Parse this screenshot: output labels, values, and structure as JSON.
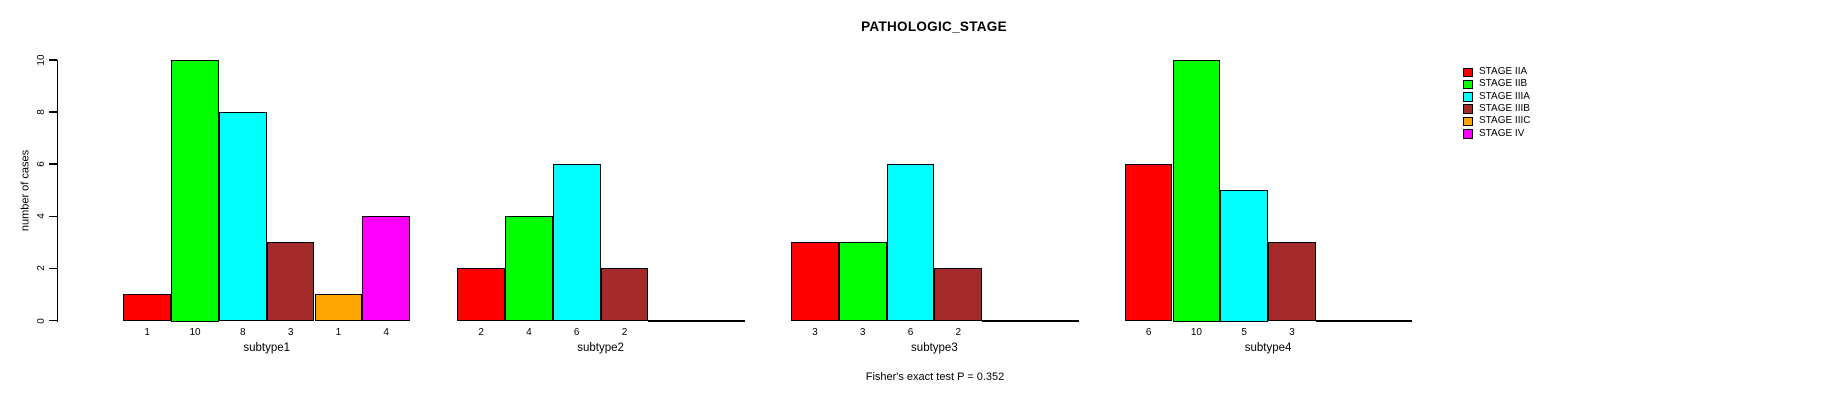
{
  "chart_data": {
    "type": "bar",
    "title": "PATHOLOGIC_STAGE",
    "ylabel": "number of cases",
    "annotation": "Fisher's exact test P = 0.352",
    "ylim": [
      0,
      10
    ],
    "yticks": [
      0,
      2,
      4,
      6,
      8,
      10
    ],
    "grid": false,
    "legend_position": "top-right",
    "categories": [
      "subtype1",
      "subtype2",
      "subtype3",
      "subtype4"
    ],
    "series": [
      {
        "name": "STAGE IIA",
        "color": "#FF0000",
        "values": [
          1,
          2,
          3,
          6
        ]
      },
      {
        "name": "STAGE IIB",
        "color": "#00FF00",
        "values": [
          10,
          4,
          3,
          10
        ]
      },
      {
        "name": "STAGE IIIA",
        "color": "#00FFFF",
        "values": [
          8,
          6,
          6,
          5
        ]
      },
      {
        "name": "STAGE IIIB",
        "color": "#A52A2A",
        "values": [
          3,
          2,
          2,
          3
        ]
      },
      {
        "name": "STAGE IIIC",
        "color": "#FFA500",
        "values": [
          1,
          0,
          0,
          0
        ]
      },
      {
        "name": "STAGE IV",
        "color": "#FF00FF",
        "values": [
          4,
          0,
          0,
          0
        ]
      }
    ],
    "bar_count_labels": {
      "subtype1": [
        1,
        10,
        8,
        3,
        1,
        4
      ],
      "subtype2": [
        2,
        4,
        6,
        2
      ],
      "subtype3": [
        3,
        3,
        6,
        2
      ],
      "subtype4": [
        6,
        10,
        5,
        3
      ]
    }
  }
}
